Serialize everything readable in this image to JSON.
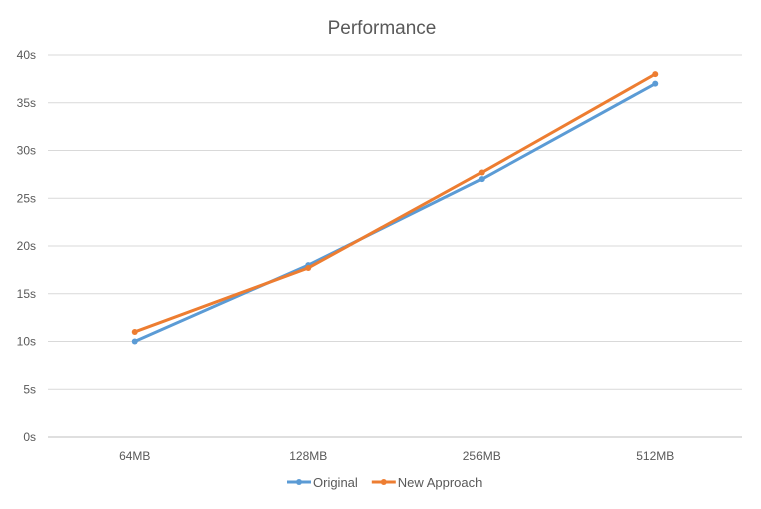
{
  "chart_data": {
    "type": "line",
    "title": "Performance",
    "xlabel": "",
    "ylabel": "",
    "categories": [
      "64MB",
      "128MB",
      "256MB",
      "512MB"
    ],
    "ylim": [
      0,
      40
    ],
    "y_ticks": [
      "0s",
      "5s",
      "10s",
      "15s",
      "20s",
      "25s",
      "30s",
      "35s",
      "40s"
    ],
    "grid": true,
    "legend_position": "bottom",
    "series": [
      {
        "name": "Original",
        "values": [
          10,
          18,
          27,
          37
        ],
        "color": "#5B9BD5"
      },
      {
        "name": "New Approach",
        "values": [
          11,
          17.7,
          27.7,
          38
        ],
        "color": "#ED7D31"
      }
    ]
  }
}
